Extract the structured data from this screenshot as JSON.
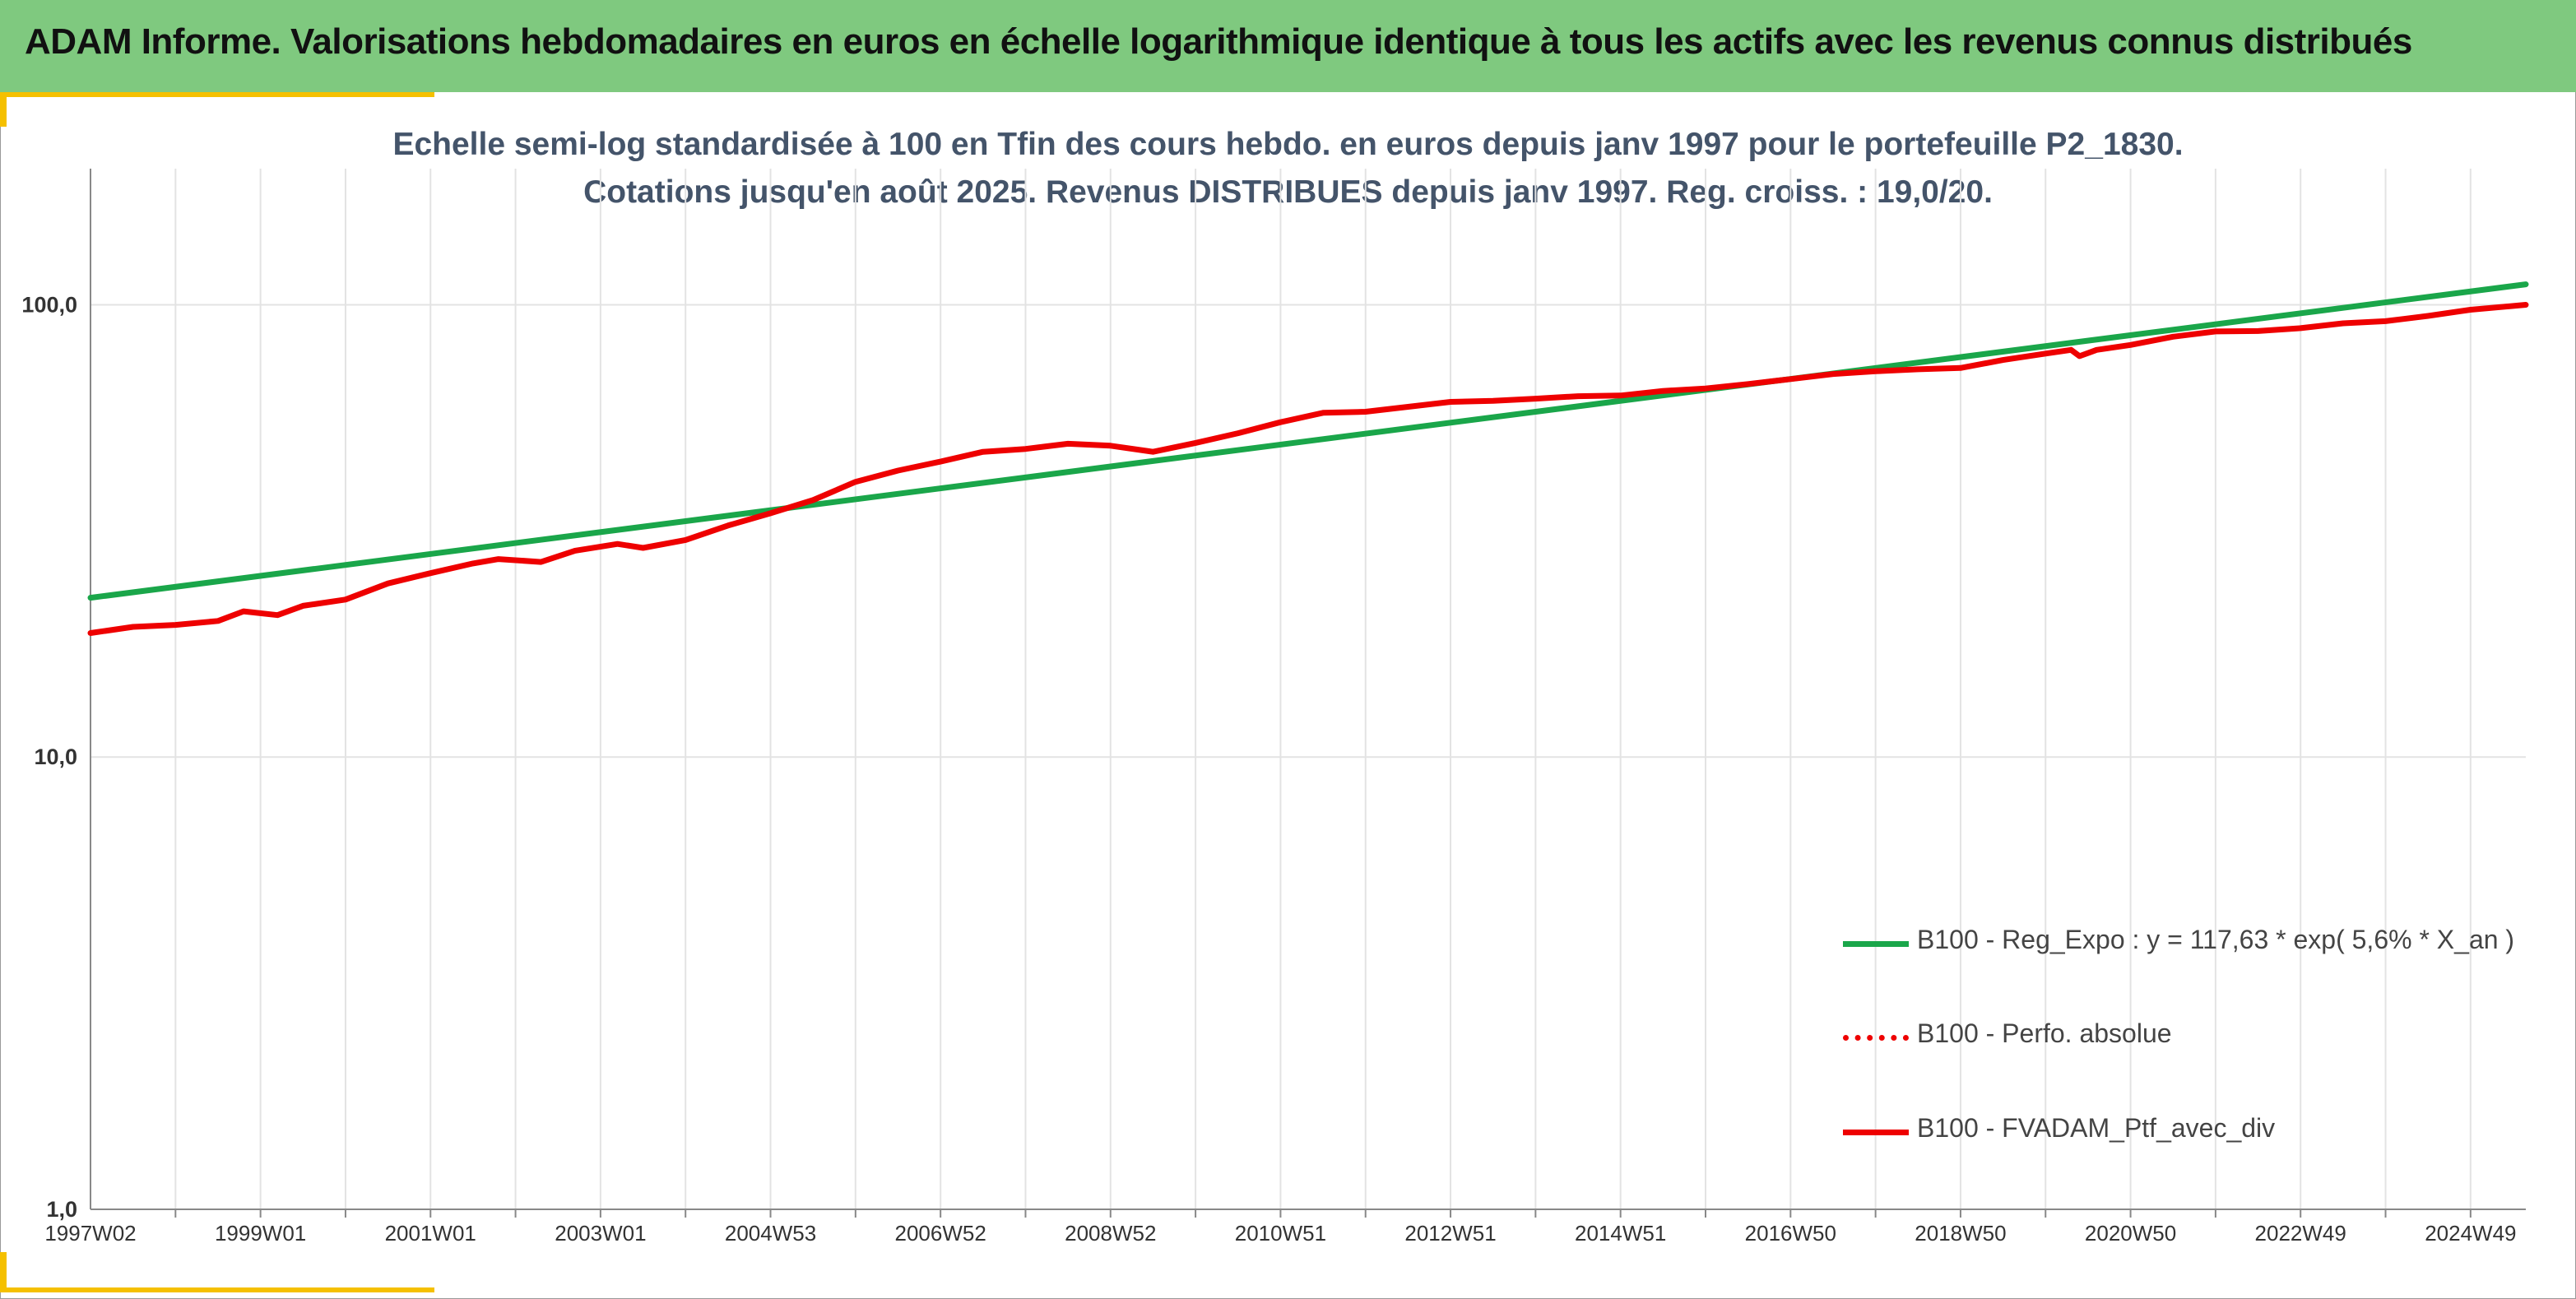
{
  "header": {
    "title": "ADAM Informe. Valorisations hebdomadaires en euros en échelle logarithmique identique à tous les actifs avec les revenus connus distribués"
  },
  "chart_data": {
    "type": "line",
    "title": "Echelle semi-log standardisée à 100 en Tfin des cours hebdo. en euros depuis janv 1997 pour le portefeuille P2_1830.",
    "subtitle": "Cotations jusqu'en août 2025. Revenus DISTRIBUES depuis janv 1997. Reg. croiss. : 19,0/20.",
    "y_scale": "log",
    "ylim": [
      1,
      200
    ],
    "y_ticks": [
      {
        "value": 1,
        "label": "1,0"
      },
      {
        "value": 10,
        "label": "10,0"
      },
      {
        "value": 100,
        "label": "100,0"
      }
    ],
    "x_range": [
      1997.0,
      2025.65
    ],
    "x_ticks": [
      {
        "value": 1997.0,
        "label": "1997W02"
      },
      {
        "value": 1999.0,
        "label": "1999W01"
      },
      {
        "value": 2001.0,
        "label": "2001W01"
      },
      {
        "value": 2003.0,
        "label": "2003W01"
      },
      {
        "value": 2005.0,
        "label": "2004W53"
      },
      {
        "value": 2007.0,
        "label": "2006W52"
      },
      {
        "value": 2009.0,
        "label": "2008W52"
      },
      {
        "value": 2011.0,
        "label": "2010W51"
      },
      {
        "value": 2013.0,
        "label": "2012W51"
      },
      {
        "value": 2015.0,
        "label": "2014W51"
      },
      {
        "value": 2017.0,
        "label": "2016W50"
      },
      {
        "value": 2019.0,
        "label": "2018W50"
      },
      {
        "value": 2021.0,
        "label": "2020W50"
      },
      {
        "value": 2023.0,
        "label": "2022W49"
      },
      {
        "value": 2025.0,
        "label": "2024W49"
      }
    ],
    "grid": "vertical",
    "legend_position": "bottom-right",
    "series": [
      {
        "name": "B100 - Reg_Expo : y = 117,63 * exp( 5,6% *  X_an )",
        "color": "#1aa64a",
        "style": "solid",
        "points": [
          [
            1997.0,
            22.5
          ],
          [
            2025.65,
            111.0
          ]
        ]
      },
      {
        "name": "B100 - Perfo. absolue",
        "color": "#ee0000",
        "style": "dotted",
        "points": []
      },
      {
        "name": "B100 - FVADAM_Ptf_avec_div",
        "color": "#ee0000",
        "style": "solid",
        "points": [
          [
            1997.0,
            18.8
          ],
          [
            1997.5,
            19.4
          ],
          [
            1998.0,
            19.6
          ],
          [
            1998.5,
            20.0
          ],
          [
            1998.8,
            21.0
          ],
          [
            1999.2,
            20.6
          ],
          [
            1999.5,
            21.6
          ],
          [
            2000.0,
            22.3
          ],
          [
            2000.5,
            24.2
          ],
          [
            2001.0,
            25.5
          ],
          [
            2001.5,
            26.8
          ],
          [
            2001.8,
            27.4
          ],
          [
            2002.3,
            27.0
          ],
          [
            2002.7,
            28.6
          ],
          [
            2003.2,
            29.6
          ],
          [
            2003.5,
            29.0
          ],
          [
            2004.0,
            30.2
          ],
          [
            2004.5,
            32.5
          ],
          [
            2005.0,
            34.6
          ],
          [
            2005.5,
            37.0
          ],
          [
            2006.0,
            40.6
          ],
          [
            2006.5,
            43.0
          ],
          [
            2007.0,
            45.0
          ],
          [
            2007.5,
            47.3
          ],
          [
            2008.0,
            48.0
          ],
          [
            2008.5,
            49.3
          ],
          [
            2009.0,
            48.8
          ],
          [
            2009.5,
            47.3
          ],
          [
            2010.0,
            49.5
          ],
          [
            2010.5,
            52.0
          ],
          [
            2011.0,
            55.0
          ],
          [
            2011.5,
            57.7
          ],
          [
            2012.0,
            58.0
          ],
          [
            2012.5,
            59.5
          ],
          [
            2013.0,
            61.0
          ],
          [
            2013.5,
            61.3
          ],
          [
            2014.0,
            62.0
          ],
          [
            2014.5,
            62.8
          ],
          [
            2015.0,
            63.0
          ],
          [
            2015.5,
            64.5
          ],
          [
            2016.0,
            65.3
          ],
          [
            2016.5,
            66.8
          ],
          [
            2017.0,
            68.5
          ],
          [
            2017.5,
            70.3
          ],
          [
            2018.0,
            71.3
          ],
          [
            2018.5,
            72.0
          ],
          [
            2019.0,
            72.5
          ],
          [
            2019.5,
            75.5
          ],
          [
            2020.0,
            78.0
          ],
          [
            2020.3,
            79.5
          ],
          [
            2020.4,
            77.0
          ],
          [
            2020.6,
            79.5
          ],
          [
            2021.0,
            81.5
          ],
          [
            2021.5,
            85.0
          ],
          [
            2022.0,
            87.3
          ],
          [
            2022.5,
            87.5
          ],
          [
            2023.0,
            88.8
          ],
          [
            2023.5,
            91.0
          ],
          [
            2024.0,
            92.0
          ],
          [
            2024.5,
            94.5
          ],
          [
            2025.0,
            97.5
          ],
          [
            2025.65,
            100.0
          ]
        ]
      }
    ]
  }
}
